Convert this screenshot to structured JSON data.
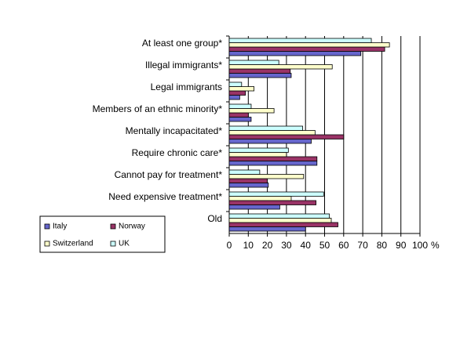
{
  "chart_data": {
    "type": "hbar",
    "categories": [
      "At least one group*",
      "Illegal immigrants*",
      "Legal immigrants",
      "Members of an ethnic minority*",
      "Mentally incapacitated*",
      "Require chronic care*",
      "Cannot pay for treatment*",
      "Need expensive treatment*",
      "Old"
    ],
    "series": [
      {
        "name": "Italy",
        "color": "#6666cc",
        "values": [
          69,
          32.5,
          5.5,
          11.5,
          43,
          46,
          20.5,
          26.5,
          40
        ]
      },
      {
        "name": "Norway",
        "color": "#993366",
        "values": [
          81.5,
          32,
          8.5,
          10,
          60,
          46,
          20,
          45.5,
          57
        ]
      },
      {
        "name": "Switzerland",
        "color": "#ffffcc",
        "values": [
          84,
          54,
          13,
          23.5,
          45,
          30,
          39,
          32.5,
          53.5
        ]
      },
      {
        "name": "UK",
        "color": "#ccffff",
        "values": [
          74.5,
          26,
          6.5,
          11.5,
          38.5,
          31,
          16,
          49.5,
          52.5
        ]
      }
    ],
    "xlim": [
      0,
      100
    ],
    "xticks": [
      0,
      10,
      20,
      30,
      40,
      50,
      60,
      70,
      80,
      90,
      100
    ],
    "x_unit": "%",
    "grid": true
  }
}
